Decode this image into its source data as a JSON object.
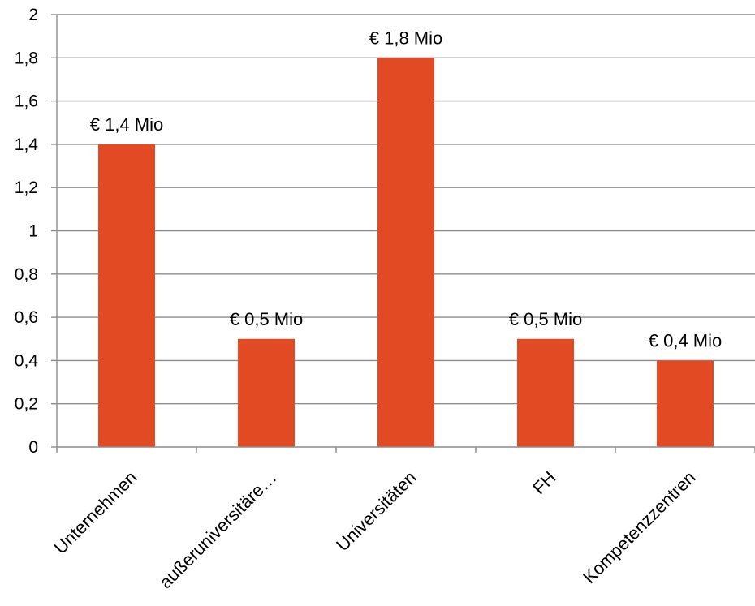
{
  "chart_data": {
    "type": "bar",
    "categories": [
      "Unternehmen",
      "außeruniversitäre…",
      "Universitäten",
      "FH",
      "Kompetenzzentren"
    ],
    "values": [
      1.4,
      0.5,
      1.8,
      0.5,
      0.4
    ],
    "data_labels": [
      "€ 1,4 Mio",
      "€ 0,5 Mio",
      "€ 1,8 Mio",
      "€ 0,5 Mio",
      "€ 0,4 Mio"
    ],
    "ylim": [
      0,
      2
    ],
    "yticks": [
      0,
      0.2,
      0.4,
      0.6,
      0.8,
      1,
      1.2,
      1.4,
      1.6,
      1.8,
      2
    ],
    "ytick_labels": [
      "0",
      "0,2",
      "0,4",
      "0,6",
      "0,8",
      "1",
      "1,2",
      "1,4",
      "1,6",
      "1,8",
      "2"
    ],
    "title": "",
    "xlabel": "",
    "ylabel": "",
    "grid": true,
    "legend": "none",
    "colors": {
      "bar": "#E24A24",
      "grid": "#8C8C8C",
      "axis": "#8C8C8C"
    }
  }
}
